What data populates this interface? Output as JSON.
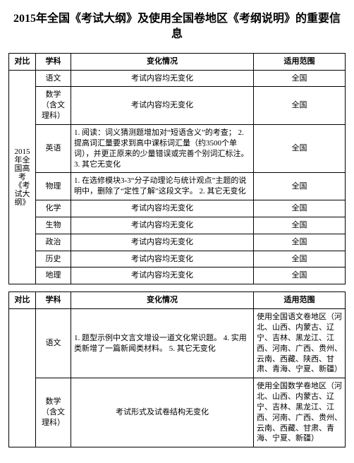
{
  "page_title": "2015年全国《考试大纲》及使用全国卷地区《考纲说明》的重要信息",
  "headers": {
    "col1": "对比",
    "col2": "学科",
    "col3": "变化情况",
    "col4": "适用范围"
  },
  "table1": {
    "group_label": "2015年全国高考《考试大纲》",
    "rows": [
      {
        "subject": "语文",
        "change": "考试内容均无变化",
        "scope": "全国"
      },
      {
        "subject": "数学（含文理科）",
        "change": "考试内容均无变化",
        "scope": "全国"
      },
      {
        "subject": "英语",
        "change": "1. 阅读：词义猜测题增加对“短语含义”的考查；\n2. 提高词汇量要求到高中课标词汇量（约3500个单词），并更正原来的少量错误或完善个别词汇标注。\n3. 其它无变化",
        "scope": "全国"
      },
      {
        "subject": "物理",
        "change": "1. 在选修模块3-3“分子动理论与统计观点”主题的说明中，删除了“定性了解”这段文字。\n2. 其它无变化",
        "scope": "全国"
      },
      {
        "subject": "化学",
        "change": "考试内容均无变化",
        "scope": "全国"
      },
      {
        "subject": "生物",
        "change": "考试内容均无变化",
        "scope": "全国"
      },
      {
        "subject": "政治",
        "change": "考试内容均无变化",
        "scope": "全国"
      },
      {
        "subject": "历史",
        "change": "考试内容均无变化",
        "scope": "全国"
      },
      {
        "subject": "地理",
        "change": "考试内容均无变化",
        "scope": "全国"
      }
    ]
  },
  "table2": {
    "group_label": "",
    "region_list": "使用全国语文卷地区（河北、山西、内蒙古、辽宁、吉林、黑龙江、江西、河南、广西、贵州、云南、西藏、陕西、甘肃、青海、宁夏、新疆）",
    "region_list_math": "使用全国数学卷地区（河北、山西、内蒙古、辽宁、吉林、黑龙江、江西、河南、广西、贵州、云南、西藏、甘肃、青海、宁夏、新疆）",
    "rows": [
      {
        "subject": "语文",
        "change": "1. 题型示例中文言文增设一道文化常识题。\n4. 实用类新增了一篇新闻类材料。\n5. 其它无变化",
        "scope_key": "region_list"
      },
      {
        "subject": "数学（含文理科）",
        "change": "考试形式及试卷结构无变化",
        "scope_key": "region_list_math"
      }
    ]
  }
}
